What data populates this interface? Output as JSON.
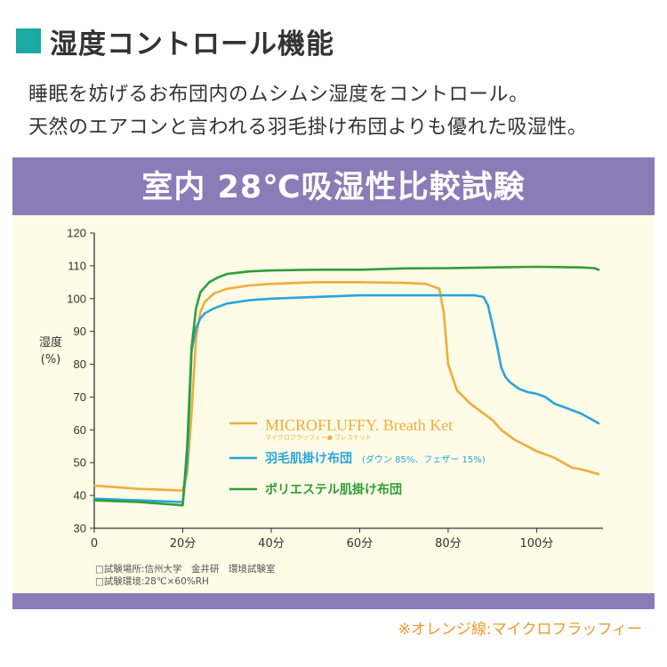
{
  "header": {
    "title": "湿度コントロール機能",
    "line1": "睡眠を妨げるお布団内のムシムシ湿度をコントロール。",
    "line2": "天然のエアコンと言われる羽毛掛け布団よりも優れた吸湿性。"
  },
  "footnote": "※オレンジ線:マイクロフラッフィー",
  "notes": [
    "□試験場所:信州大学　金井研　環境試験室",
    "□試験環境:28℃×60%RH"
  ],
  "colors": {
    "orange": "#f0ac3c",
    "blue": "#2aa4dc",
    "green": "#2e9e3a",
    "panel": "#8c7bb6",
    "teal": "#1aa9a3"
  },
  "chart_data": {
    "type": "line",
    "title": "室内 28℃吸湿性比較試験",
    "ylabel": [
      "湿度",
      "(%)"
    ],
    "xlabel": "",
    "xlim": [
      0,
      115
    ],
    "ylim": [
      30,
      120
    ],
    "xticks": [
      {
        "v": 0,
        "label": "0"
      },
      {
        "v": 20,
        "label": "20分"
      },
      {
        "v": 40,
        "label": "40分"
      },
      {
        "v": 60,
        "label": "60分"
      },
      {
        "v": 80,
        "label": "80分"
      },
      {
        "v": 100,
        "label": "100分"
      }
    ],
    "yticks": [
      30,
      40,
      50,
      60,
      70,
      80,
      90,
      100,
      110,
      120
    ],
    "grid": false,
    "series": [
      {
        "name": "MICROFLUFFY. Breath Ket",
        "sub": "マイクロフラッフィー● ブレスケット",
        "color": "#f0ac3c",
        "x": [
          0,
          10,
          20,
          21,
          22,
          23,
          24,
          25,
          27,
          30,
          35,
          40,
          50,
          60,
          70,
          75,
          78,
          79,
          80,
          82,
          85,
          88,
          90,
          92,
          95,
          100,
          104,
          106,
          108,
          110,
          114
        ],
        "y": [
          43,
          42,
          41.5,
          47,
          65,
          88,
          96,
          99,
          101.5,
          103,
          104,
          104.5,
          105,
          105,
          104.8,
          104.5,
          103,
          96,
          80,
          72,
          68,
          65,
          63,
          60,
          57,
          53.5,
          51.5,
          50,
          48.5,
          48,
          46.5
        ]
      },
      {
        "name": "羽毛肌掛け布団",
        "sub": "(ダウン 85%、フェザー 15%)",
        "color": "#2aa4dc",
        "x": [
          0,
          10,
          20,
          21,
          22,
          23,
          24,
          25,
          27,
          30,
          35,
          40,
          50,
          60,
          70,
          80,
          86,
          88,
          89,
          90,
          91,
          92,
          93,
          94,
          96,
          98,
          100,
          102,
          104,
          106,
          108,
          110,
          112,
          114
        ],
        "y": [
          39,
          38.5,
          38,
          50,
          84,
          91,
          94,
          95.5,
          97,
          98.5,
          99.5,
          100,
          100.5,
          101,
          101,
          101,
          101,
          100.5,
          98,
          92,
          86,
          79,
          76,
          74.5,
          72.5,
          71.5,
          71,
          70,
          68,
          67,
          66,
          65,
          63.5,
          62
        ]
      },
      {
        "name": "ポリエステル肌掛け布団",
        "sub": "",
        "color": "#2e9e3a",
        "x": [
          0,
          10,
          20,
          21,
          22,
          23,
          24,
          26,
          28,
          30,
          35,
          40,
          50,
          60,
          70,
          80,
          90,
          100,
          110,
          113,
          114
        ],
        "y": [
          38.5,
          38,
          37,
          55,
          85,
          97,
          102,
          105,
          106.5,
          107.5,
          108.3,
          108.6,
          108.8,
          108.8,
          109.2,
          109.3,
          109.5,
          109.7,
          109.5,
          109.3,
          108.8
        ]
      }
    ]
  }
}
